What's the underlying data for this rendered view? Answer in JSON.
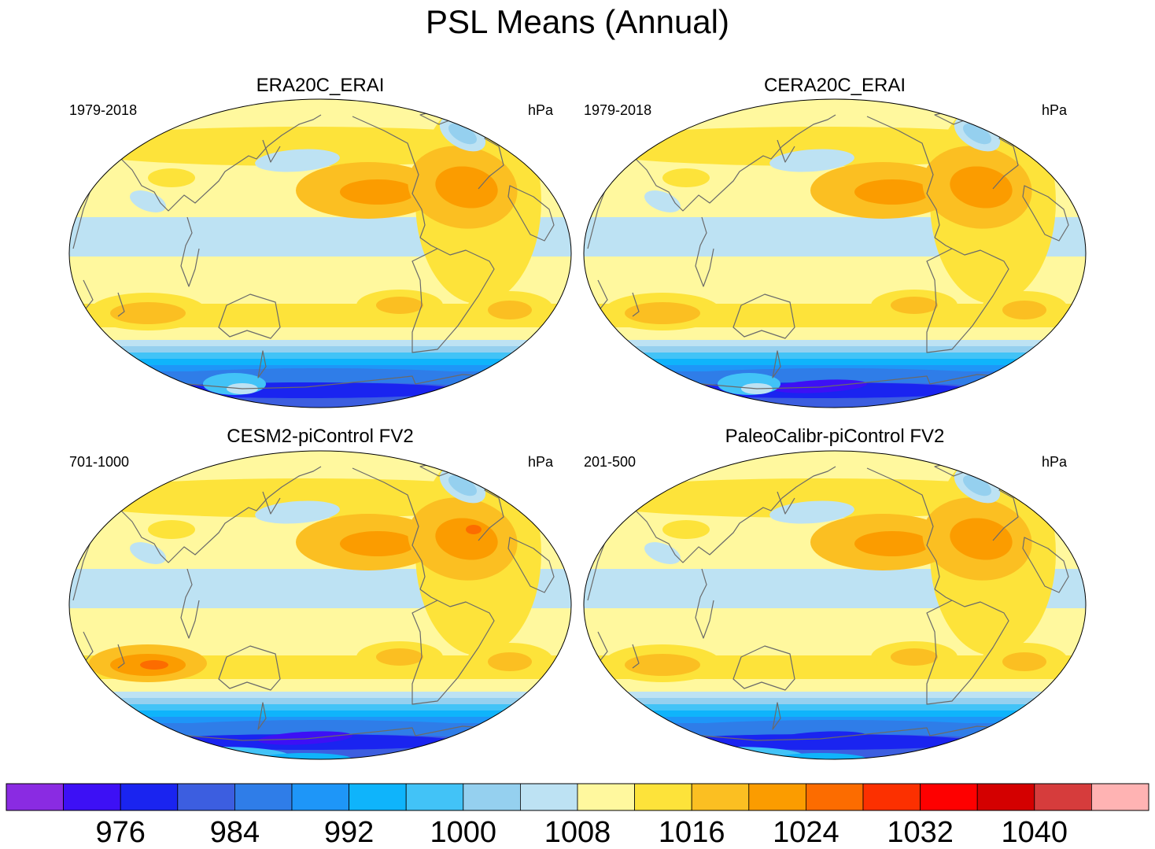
{
  "chart_data": {
    "type": "map-contour",
    "title": "PSL Means (Annual)",
    "colorbar": {
      "colors": [
        "#8a2be2",
        "#3d10f5",
        "#1a24f0",
        "#3c5ee0",
        "#2f7de8",
        "#1e96f8",
        "#0fb4fb",
        "#42c3f7",
        "#95d0ef",
        "#bde2f3",
        "#fff89e",
        "#fde33a",
        "#fbbf22",
        "#fb9c00",
        "#fc6c00",
        "#fc3000",
        "#fe0000",
        "#d40000",
        "#d63c3c",
        "#ffb3b3"
      ],
      "tick_labels": [
        "976",
        "984",
        "992",
        "1000",
        "1008",
        "1016",
        "1024",
        "1032",
        "1040"
      ],
      "units": "hPa"
    },
    "panels": [
      {
        "id": "era20c",
        "title": "ERA20C_ERAI",
        "period": "1979-2018",
        "units": "hPa",
        "antarctic_low": 982,
        "ant_pale_patch": true,
        "subtropical_highs": {
          "north_pacific": 1024,
          "north_atlantic": 1024,
          "south_pacific": 1022,
          "south_atlantic": 1022,
          "south_indian": 1022
        },
        "aleutian_low": 1008,
        "icelandic_low": 1007
      },
      {
        "id": "cera20c",
        "title": "CERA20C_ERAI",
        "period": "1979-2018",
        "units": "hPa",
        "antarctic_low": 978,
        "ant_pale_patch": true,
        "subtropical_highs": {
          "north_pacific": 1024,
          "north_atlantic": 1024,
          "south_pacific": 1022,
          "south_atlantic": 1022,
          "south_indian": 1022
        },
        "aleutian_low": 1008,
        "icelandic_low": 1006
      },
      {
        "id": "cesm2",
        "title": "CESM2-piControl FV2",
        "period": "701-1000",
        "units": "hPa",
        "antarctic_low": 978,
        "ant_pale_patch": false,
        "subtropical_highs": {
          "north_pacific": 1024,
          "north_atlantic": 1026,
          "south_pacific": 1023,
          "south_atlantic": 1023,
          "south_indian": 1026
        },
        "aleutian_low": 1008,
        "icelandic_low": 1007
      },
      {
        "id": "paleocalibr",
        "title": "PaleoCalibr-piControl FV2",
        "period": "201-500",
        "units": "hPa",
        "antarctic_low": 980,
        "ant_pale_patch": false,
        "subtropical_highs": {
          "north_pacific": 1024,
          "north_atlantic": 1024,
          "south_pacific": 1023,
          "south_atlantic": 1023,
          "south_indian": 1023
        },
        "aleutian_low": 1008,
        "icelandic_low": 1007
      }
    ]
  }
}
